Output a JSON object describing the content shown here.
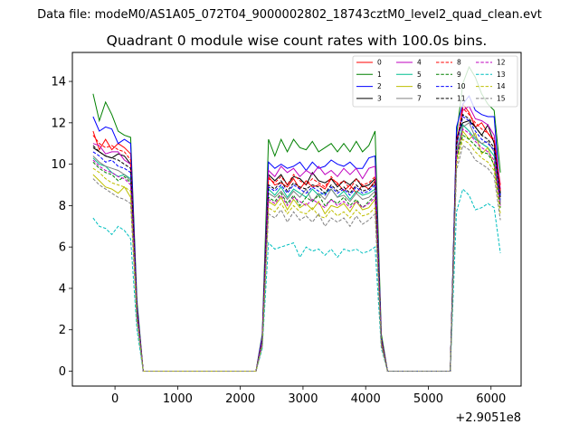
{
  "suptitle": "Data file: modeM0/AS1A05_072T04_9000002802_18743cztM0_level2_quad_clean.evt",
  "chart_data": {
    "type": "line",
    "title": "Quadrant 0 module wise count rates with 100.0s bins.",
    "xlabel": "",
    "ylabel": "",
    "x_offset_label": "+2.9051e8",
    "xlim": [
      -680,
      6480
    ],
    "ylim": [
      -0.72,
      15.4
    ],
    "xticks": [
      0,
      1000,
      2000,
      3000,
      4000,
      5000,
      6000
    ],
    "xtick_labels": [
      "0",
      "1000",
      "2000",
      "3000",
      "4000",
      "5000",
      "6000"
    ],
    "yticks": [
      0,
      2,
      4,
      6,
      8,
      10,
      12,
      14
    ],
    "ytick_labels": [
      "0",
      "2",
      "4",
      "6",
      "8",
      "10",
      "12",
      "14"
    ],
    "grid": false,
    "legend_location": "top-right",
    "x": [
      -350,
      -250,
      -150,
      -50,
      50,
      150,
      250,
      350,
      450,
      2250,
      2350,
      2450,
      2550,
      2650,
      2750,
      2850,
      2950,
      3050,
      3150,
      3250,
      3350,
      3450,
      3550,
      3650,
      3750,
      3850,
      3950,
      4050,
      4150,
      4250,
      4350,
      5350,
      5450,
      5550,
      5650,
      5750,
      5850,
      5950,
      6050,
      6150
    ],
    "series": [
      {
        "name": "0",
        "color": "#ff0000",
        "dashed": false,
        "values": [
          11.6,
          10.7,
          11.2,
          10.7,
          11.0,
          10.8,
          10.5,
          3.0,
          0,
          0,
          1.5,
          9.4,
          9.0,
          9.1,
          8.9,
          9.3,
          8.8,
          9.2,
          8.9,
          9.0,
          8.8,
          9.3,
          9.1,
          8.7,
          9.0,
          8.6,
          9.0,
          8.8,
          9.2,
          1.5,
          0,
          0,
          10.8,
          12.9,
          12.5,
          11.8,
          12.0,
          11.5,
          11.1,
          9.0
        ]
      },
      {
        "name": "1",
        "color": "#008000",
        "dashed": false,
        "values": [
          13.4,
          12.1,
          13.0,
          12.4,
          11.6,
          11.4,
          11.3,
          3.4,
          0,
          0,
          1.8,
          11.2,
          10.4,
          11.2,
          10.6,
          11.2,
          10.8,
          10.7,
          11.1,
          10.6,
          10.8,
          11.0,
          10.6,
          11.0,
          10.6,
          11.1,
          10.6,
          10.9,
          11.6,
          1.8,
          0,
          0,
          11.4,
          13.9,
          14.7,
          14.2,
          13.4,
          12.9,
          12.6,
          9.6
        ]
      },
      {
        "name": "2",
        "color": "#0000ff",
        "dashed": false,
        "values": [
          12.3,
          11.6,
          11.8,
          11.7,
          11.0,
          11.2,
          11.0,
          3.2,
          0,
          0,
          1.7,
          10.1,
          9.8,
          10.0,
          9.8,
          9.9,
          10.1,
          9.7,
          10.1,
          9.8,
          9.9,
          10.2,
          10.0,
          9.9,
          10.1,
          9.8,
          9.8,
          10.3,
          10.4,
          1.6,
          0,
          0,
          11.8,
          12.9,
          13.3,
          12.6,
          12.4,
          12.3,
          12.3,
          8.5
        ]
      },
      {
        "name": "3",
        "color": "#000000",
        "dashed": false,
        "values": [
          10.8,
          10.6,
          10.4,
          10.3,
          10.5,
          10.4,
          10.0,
          2.9,
          0,
          0,
          1.5,
          9.5,
          9.2,
          9.5,
          9.0,
          9.4,
          9.3,
          9.0,
          9.6,
          9.2,
          9.1,
          9.3,
          8.9,
          9.2,
          9.0,
          9.3,
          8.9,
          9.0,
          9.3,
          1.5,
          0,
          0,
          11.3,
          12.0,
          12.1,
          11.8,
          11.4,
          11.9,
          11.0,
          8.6
        ]
      },
      {
        "name": "4",
        "color": "#bf00bf",
        "dashed": false,
        "values": [
          11.0,
          10.9,
          10.5,
          10.6,
          10.6,
          10.2,
          10.0,
          3.0,
          0,
          0,
          1.6,
          9.7,
          9.4,
          9.9,
          9.6,
          9.8,
          9.4,
          9.7,
          9.5,
          9.9,
          9.5,
          9.7,
          9.4,
          9.8,
          9.5,
          9.8,
          9.3,
          9.8,
          9.9,
          1.6,
          0,
          0,
          11.1,
          12.6,
          12.8,
          12.2,
          12.1,
          11.9,
          11.4,
          8.8
        ]
      },
      {
        "name": "5",
        "color": "#00bf8f",
        "dashed": false,
        "values": [
          10.3,
          10.0,
          9.9,
          9.6,
          9.4,
          9.5,
          9.3,
          2.8,
          0,
          0,
          1.4,
          8.8,
          8.5,
          8.9,
          8.4,
          8.8,
          8.6,
          8.4,
          8.8,
          8.5,
          8.6,
          8.8,
          8.4,
          8.7,
          8.3,
          8.7,
          8.5,
          8.6,
          8.8,
          1.4,
          0,
          0,
          10.6,
          11.9,
          11.6,
          11.2,
          11.0,
          10.8,
          10.4,
          8.2
        ]
      },
      {
        "name": "6",
        "color": "#bfbf00",
        "dashed": false,
        "values": [
          9.5,
          9.2,
          8.9,
          8.8,
          8.6,
          8.9,
          8.4,
          2.6,
          0,
          0,
          1.3,
          8.2,
          8.0,
          8.4,
          7.8,
          8.3,
          7.9,
          8.1,
          7.8,
          8.2,
          7.6,
          8.0,
          7.9,
          8.1,
          7.7,
          8.2,
          7.8,
          7.9,
          8.3,
          1.3,
          0,
          0,
          10.2,
          11.6,
          11.2,
          11.5,
          10.5,
          10.8,
          9.9,
          8.0
        ]
      },
      {
        "name": "7",
        "color": "#808080",
        "dashed": false,
        "values": [
          10.4,
          10.1,
          9.9,
          9.8,
          9.7,
          9.5,
          9.2,
          2.8,
          0,
          0,
          1.4,
          8.6,
          8.4,
          8.7,
          8.3,
          8.7,
          8.4,
          8.8,
          8.2,
          8.6,
          8.3,
          8.8,
          8.4,
          8.5,
          8.2,
          8.6,
          8.3,
          8.4,
          8.7,
          1.4,
          0,
          0,
          10.5,
          11.8,
          12.0,
          11.3,
          11.0,
          11.1,
          10.6,
          8.1
        ]
      },
      {
        "name": "8",
        "color": "#ff0000",
        "dashed": true,
        "values": [
          11.4,
          11.0,
          10.8,
          10.9,
          10.7,
          10.6,
          10.2,
          3.0,
          0,
          0,
          1.5,
          9.3,
          9.1,
          9.4,
          9.0,
          9.5,
          9.2,
          9.0,
          9.3,
          9.1,
          8.9,
          9.4,
          9.0,
          9.2,
          8.8,
          9.3,
          9.0,
          9.1,
          9.4,
          1.5,
          0,
          0,
          11.0,
          12.7,
          12.4,
          12.0,
          11.7,
          11.5,
          11.2,
          8.7
        ]
      },
      {
        "name": "9",
        "color": "#008000",
        "dashed": true,
        "values": [
          10.1,
          9.8,
          9.6,
          9.5,
          9.2,
          9.4,
          9.1,
          2.7,
          0,
          0,
          1.4,
          8.4,
          8.2,
          8.6,
          8.1,
          8.5,
          8.0,
          8.4,
          8.2,
          8.5,
          8.0,
          8.3,
          8.1,
          8.4,
          8.0,
          8.3,
          7.9,
          8.2,
          8.5,
          1.4,
          0,
          0,
          10.3,
          11.4,
          11.2,
          10.9,
          10.6,
          10.5,
          10.0,
          7.9
        ]
      },
      {
        "name": "10",
        "color": "#0000ff",
        "dashed": true,
        "values": [
          10.6,
          10.4,
          10.1,
          10.2,
          9.9,
          9.8,
          9.6,
          2.9,
          0,
          0,
          1.5,
          8.9,
          8.7,
          9.0,
          8.6,
          9.0,
          8.8,
          8.6,
          8.9,
          8.7,
          8.5,
          8.9,
          8.6,
          8.8,
          8.5,
          8.9,
          8.6,
          8.7,
          9.0,
          1.5,
          0,
          0,
          10.9,
          12.3,
          12.1,
          11.6,
          11.2,
          11.0,
          10.7,
          8.3
        ]
      },
      {
        "name": "11",
        "color": "#000000",
        "dashed": true,
        "values": [
          10.9,
          10.6,
          10.4,
          10.3,
          10.2,
          10.0,
          9.8,
          2.9,
          0,
          0,
          1.5,
          9.0,
          8.8,
          9.2,
          8.7,
          9.1,
          8.9,
          8.8,
          9.0,
          8.9,
          8.6,
          9.0,
          8.7,
          8.9,
          8.6,
          9.0,
          8.7,
          8.8,
          9.1,
          1.5,
          0,
          0,
          11.0,
          12.4,
          12.2,
          11.8,
          11.4,
          11.2,
          10.8,
          8.4
        ]
      },
      {
        "name": "12",
        "color": "#bf00bf",
        "dashed": true,
        "values": [
          10.2,
          9.9,
          9.7,
          9.6,
          9.4,
          9.3,
          9.0,
          2.7,
          0,
          0,
          1.4,
          8.3,
          8.1,
          8.5,
          8.0,
          8.4,
          8.2,
          8.0,
          8.3,
          8.1,
          7.9,
          8.3,
          8.0,
          8.2,
          7.9,
          8.2,
          7.9,
          8.1,
          8.4,
          1.4,
          0,
          0,
          10.4,
          11.7,
          11.5,
          11.1,
          10.8,
          10.6,
          10.2,
          8.0
        ]
      },
      {
        "name": "13",
        "color": "#00bfbf",
        "dashed": true,
        "values": [
          7.4,
          7.0,
          6.9,
          6.6,
          7.0,
          6.8,
          6.4,
          2.0,
          0,
          0,
          1.1,
          6.2,
          5.9,
          6.0,
          6.1,
          6.2,
          5.5,
          6.0,
          5.8,
          5.9,
          5.6,
          5.9,
          5.5,
          5.9,
          5.8,
          5.9,
          5.7,
          5.8,
          6.0,
          1.1,
          0,
          0,
          7.7,
          8.8,
          8.5,
          7.8,
          7.9,
          8.1,
          7.9,
          5.7
        ]
      },
      {
        "name": "14",
        "color": "#bfbf00",
        "dashed": true,
        "values": [
          9.8,
          9.6,
          9.3,
          9.1,
          9.0,
          8.9,
          8.7,
          2.6,
          0,
          0,
          1.3,
          7.9,
          7.7,
          8.1,
          7.6,
          8.0,
          7.7,
          7.6,
          7.9,
          7.5,
          7.4,
          7.8,
          7.5,
          7.7,
          7.4,
          7.8,
          7.5,
          7.6,
          7.9,
          1.3,
          0,
          0,
          10.0,
          11.2,
          11.0,
          10.6,
          10.3,
          10.1,
          9.7,
          7.6
        ]
      },
      {
        "name": "15",
        "color": "#808080",
        "dashed": true,
        "values": [
          9.3,
          9.0,
          8.8,
          8.6,
          8.4,
          8.3,
          8.1,
          2.4,
          0,
          0,
          1.2,
          7.6,
          7.4,
          7.8,
          7.2,
          7.7,
          7.3,
          7.5,
          7.2,
          7.6,
          7.0,
          7.4,
          7.2,
          7.4,
          7.0,
          7.5,
          7.1,
          7.3,
          7.6,
          1.2,
          0,
          0,
          9.7,
          10.9,
          10.7,
          10.2,
          10.0,
          9.8,
          9.4,
          7.3
        ]
      }
    ]
  }
}
